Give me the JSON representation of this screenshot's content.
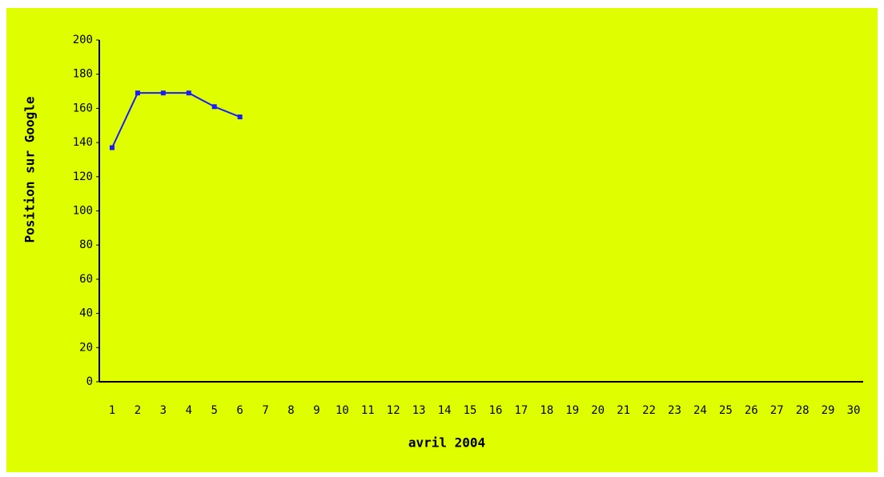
{
  "chart_data": {
    "type": "line",
    "x_label": "avril 2004",
    "y_label": "Position sur Google",
    "categories": [
      1,
      2,
      3,
      4,
      5,
      6,
      7,
      8,
      9,
      10,
      11,
      12,
      13,
      14,
      15,
      16,
      17,
      18,
      19,
      20,
      21,
      22,
      23,
      24,
      25,
      26,
      27,
      28,
      29,
      30
    ],
    "values": [
      137,
      169,
      169,
      169,
      161,
      155,
      null,
      null,
      null,
      null,
      null,
      null,
      null,
      null,
      null,
      null,
      null,
      null,
      null,
      null,
      null,
      null,
      null,
      null,
      null,
      null,
      null,
      null,
      null,
      null
    ],
    "color": "#1a1aff",
    "background": "#dfff00",
    "ylim": [
      0,
      200
    ],
    "yticks": [
      0,
      20,
      40,
      60,
      80,
      100,
      120,
      140,
      160,
      180,
      200
    ],
    "grid": false
  }
}
